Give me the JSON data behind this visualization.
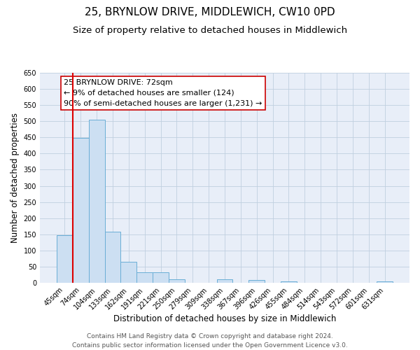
{
  "title": "25, BRYNLOW DRIVE, MIDDLEWICH, CW10 0PD",
  "subtitle": "Size of property relative to detached houses in Middlewich",
  "xlabel": "Distribution of detached houses by size in Middlewich",
  "ylabel": "Number of detached properties",
  "bin_labels": [
    "45sqm",
    "74sqm",
    "104sqm",
    "133sqm",
    "162sqm",
    "191sqm",
    "221sqm",
    "250sqm",
    "279sqm",
    "309sqm",
    "338sqm",
    "367sqm",
    "396sqm",
    "426sqm",
    "455sqm",
    "484sqm",
    "514sqm",
    "543sqm",
    "572sqm",
    "601sqm",
    "631sqm"
  ],
  "bar_heights": [
    148,
    448,
    504,
    158,
    65,
    32,
    32,
    12,
    0,
    0,
    10,
    0,
    8,
    0,
    5,
    0,
    0,
    0,
    0,
    0,
    5
  ],
  "bar_color": "#ccdff2",
  "bar_edge_color": "#6aaed6",
  "vline_color": "#dd0000",
  "annotation_title": "25 BRYNLOW DRIVE: 72sqm",
  "annotation_line1": "← 9% of detached houses are smaller (124)",
  "annotation_line2": "90% of semi-detached houses are larger (1,231) →",
  "annotation_box_facecolor": "#ffffff",
  "annotation_box_edgecolor": "#cc0000",
  "ylim": [
    0,
    650
  ],
  "yticks": [
    0,
    50,
    100,
    150,
    200,
    250,
    300,
    350,
    400,
    450,
    500,
    550,
    600,
    650
  ],
  "footer1": "Contains HM Land Registry data © Crown copyright and database right 2024.",
  "footer2": "Contains public sector information licensed under the Open Government Licence v3.0.",
  "title_fontsize": 11,
  "subtitle_fontsize": 9.5,
  "axis_label_fontsize": 8.5,
  "tick_fontsize": 7,
  "annotation_title_fontsize": 8.5,
  "annotation_body_fontsize": 8,
  "footer_fontsize": 6.5,
  "bg_color": "#e8eef8",
  "grid_color": "#c0cfe0"
}
